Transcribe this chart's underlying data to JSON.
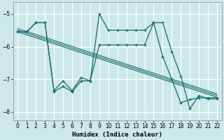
{
  "xlabel": "Humidex (Indice chaleur)",
  "bg_color": "#cce8e8",
  "line_color": "#1a6b6b",
  "grid_color": "#b0d8d8",
  "xlim": [
    -0.5,
    22.5
  ],
  "ylim": [
    -8.25,
    -4.65
  ],
  "yticks": [
    -8,
    -7,
    -6,
    -5
  ],
  "xticks": [
    0,
    1,
    2,
    3,
    4,
    5,
    6,
    7,
    8,
    9,
    10,
    11,
    12,
    13,
    14,
    15,
    16,
    17,
    18,
    19,
    20,
    21,
    22
  ],
  "series1_x": [
    0,
    1,
    2,
    3,
    4,
    5,
    6,
    7,
    8,
    9,
    10,
    11,
    12,
    13,
    14,
    15,
    16,
    17,
    18,
    19,
    20,
    21,
    22
  ],
  "series1_y": [
    -5.55,
    -5.55,
    -5.27,
    -5.27,
    -7.35,
    -7.05,
    -7.35,
    -6.95,
    -7.05,
    -5.0,
    -5.5,
    -5.5,
    -5.5,
    -5.5,
    -5.5,
    -5.27,
    -5.27,
    -6.15,
    -6.9,
    -7.9,
    -7.5,
    -7.6,
    -7.6
  ],
  "series2_x": [
    0,
    1,
    2,
    3,
    4,
    5,
    6,
    7,
    8,
    9,
    10,
    11,
    12,
    13,
    14,
    15,
    16,
    17,
    18,
    19,
    20,
    21,
    22
  ],
  "series2_y": [
    -5.55,
    -5.55,
    -5.27,
    -5.27,
    -7.38,
    -7.22,
    -7.38,
    -7.05,
    -7.05,
    -5.95,
    -5.95,
    -5.95,
    -5.95,
    -5.95,
    -5.95,
    -5.27,
    -6.3,
    -7.0,
    -7.72,
    -7.62,
    -7.57,
    -7.57,
    -7.57
  ],
  "trend_lines": [
    {
      "x": [
        0,
        22
      ],
      "y": [
        -5.55,
        -7.55
      ]
    },
    {
      "x": [
        0,
        22
      ],
      "y": [
        -5.5,
        -7.5
      ]
    },
    {
      "x": [
        0,
        22
      ],
      "y": [
        -5.45,
        -7.45
      ]
    }
  ]
}
